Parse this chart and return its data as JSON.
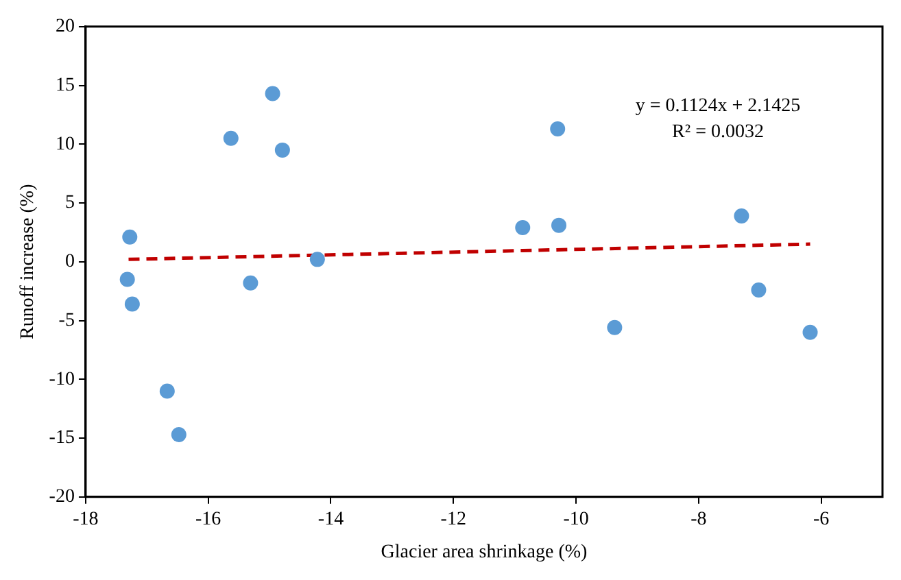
{
  "chart_data": {
    "type": "scatter",
    "xlabel": "Glacier area shrinkage (%)",
    "ylabel": "Runoff increase (%)",
    "annotations": [
      "y = 0.1124x + 2.1425",
      "R² = 0.0032"
    ],
    "xlim": [
      -18,
      -5
    ],
    "xticks": [
      -18,
      -16,
      -14,
      -12,
      -10,
      -8,
      -6
    ],
    "ylim": [
      -20,
      20
    ],
    "yticks": [
      -20,
      -15,
      -10,
      -5,
      0,
      5,
      10,
      15,
      20
    ],
    "grid": false,
    "legend": false,
    "marker": "circle",
    "series": [
      {
        "type": "scatter",
        "color": "#5b9bd5",
        "x": [
          -17.28,
          -17.32,
          -17.24,
          -16.67,
          -16.48,
          -15.63,
          -14.95,
          -14.79,
          -15.31,
          -14.22,
          -10.3,
          -10.87,
          -10.28,
          -7.3,
          -7.02,
          -9.37,
          -6.18
        ],
        "values": [
          2.1,
          -1.5,
          -3.6,
          -11,
          -14.7,
          10.5,
          14.3,
          9.5,
          -1.8,
          0.2,
          11.3,
          2.9,
          3.1,
          3.9,
          -2.4,
          -5.6,
          -6
        ]
      },
      {
        "type": "line",
        "color": "#c00000",
        "line_style": "dashed",
        "marker": "none",
        "x": [
          -17.3,
          -6.18
        ],
        "values": [
          0.2,
          1.5
        ]
      }
    ]
  }
}
